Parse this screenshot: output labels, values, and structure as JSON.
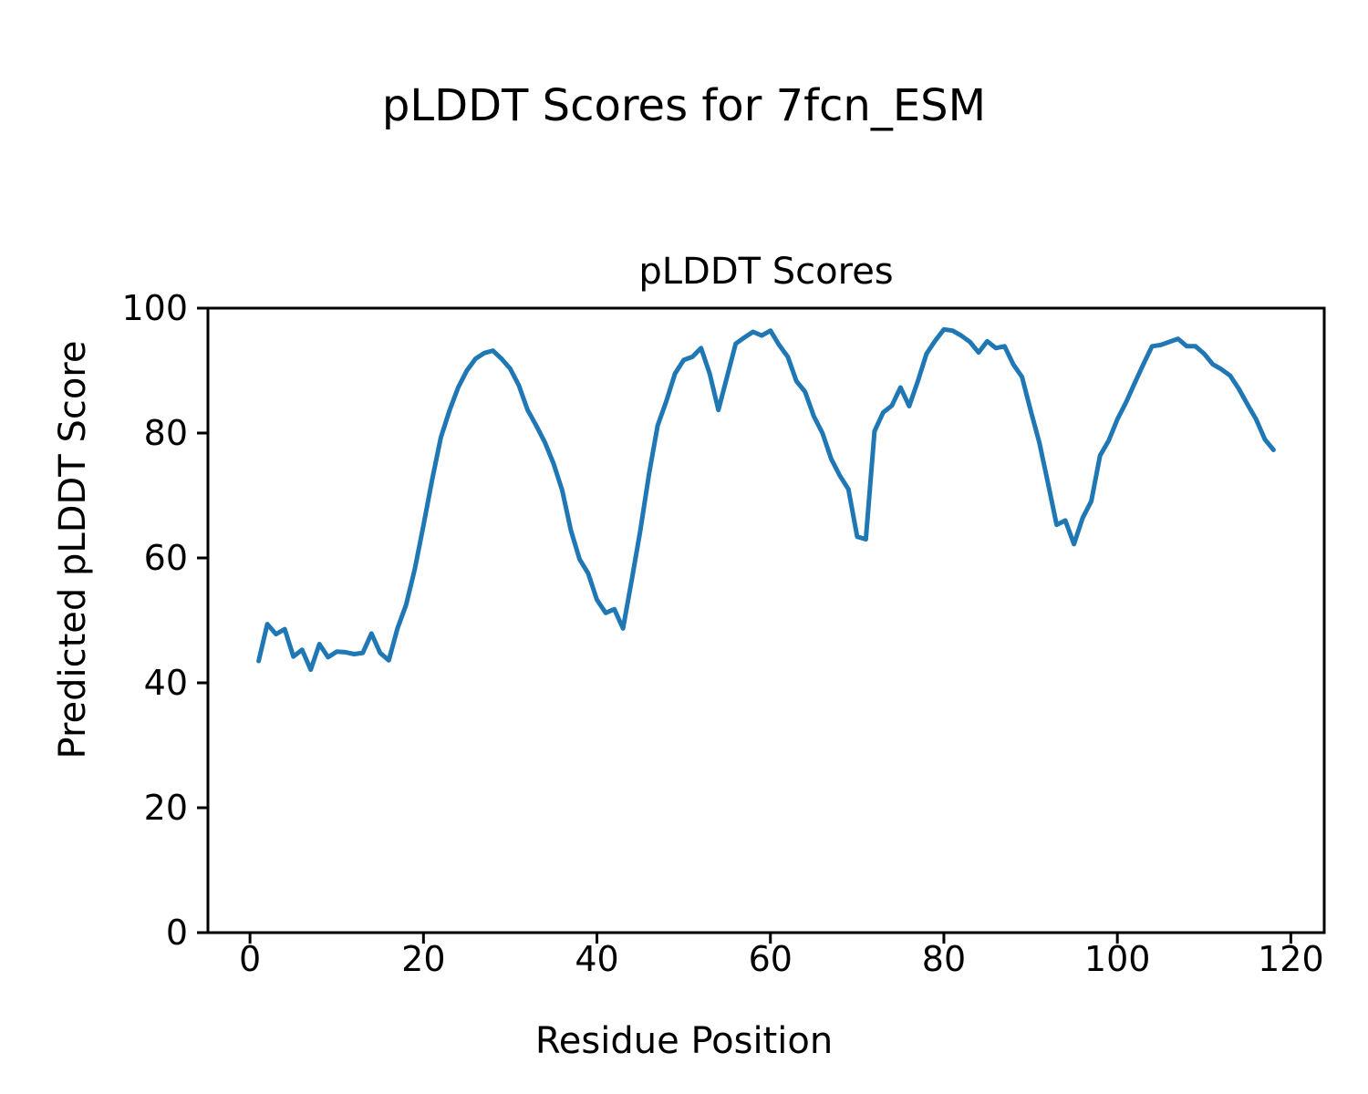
{
  "chart_data": {
    "type": "line",
    "suptitle": "pLDDT Scores for 7fcn_ESM",
    "title": "pLDDT Scores",
    "xlabel": "Residue Position",
    "ylabel": "Predicted pLDDT Score",
    "legend": null,
    "grid": false,
    "line_color": "#1f77b4",
    "line_width": 5,
    "axis_color": "#000000",
    "background_color": "#ffffff",
    "xlim": [
      -4.85,
      123.85
    ],
    "ylim": [
      0,
      100
    ],
    "xticks": [
      0,
      20,
      40,
      60,
      80,
      100,
      120
    ],
    "yticks": [
      0,
      20,
      40,
      60,
      80,
      100
    ],
    "x": [
      1,
      2,
      3,
      4,
      5,
      6,
      7,
      8,
      9,
      10,
      11,
      12,
      13,
      14,
      15,
      16,
      17,
      18,
      19,
      20,
      21,
      22,
      23,
      24,
      25,
      26,
      27,
      28,
      29,
      30,
      31,
      32,
      33,
      34,
      35,
      36,
      37,
      38,
      39,
      40,
      41,
      42,
      43,
      44,
      45,
      46,
      47,
      48,
      49,
      50,
      51,
      52,
      53,
      54,
      55,
      56,
      57,
      58,
      59,
      60,
      61,
      62,
      63,
      64,
      65,
      66,
      67,
      68,
      69,
      70,
      71,
      72,
      73,
      74,
      75,
      76,
      77,
      78,
      79,
      80,
      81,
      82,
      83,
      84,
      85,
      86,
      87,
      88,
      89,
      90,
      91,
      92,
      93,
      94,
      95,
      96,
      97,
      98,
      99,
      100,
      101,
      102,
      103,
      104,
      105,
      106,
      107,
      108,
      109,
      110,
      111,
      112,
      113,
      114,
      115,
      116,
      117,
      118
    ],
    "values": [
      43.5,
      49.4,
      47.8,
      48.6,
      44.2,
      45.3,
      42.1,
      46.2,
      44.1,
      45.0,
      44.9,
      44.6,
      44.8,
      47.9,
      44.8,
      43.6,
      48.7,
      52.5,
      58.2,
      65.2,
      72.5,
      79.3,
      83.6,
      87.3,
      90.0,
      91.9,
      92.8,
      93.2,
      91.9,
      90.3,
      87.6,
      83.7,
      81.2,
      78.5,
      75.1,
      70.8,
      64.4,
      59.8,
      57.5,
      53.3,
      51.2,
      51.8,
      48.7,
      56.4,
      64.4,
      73.4,
      81.2,
      85.1,
      89.5,
      91.7,
      92.2,
      93.6,
      89.5,
      83.7,
      89.0,
      94.3,
      95.3,
      96.2,
      95.6,
      96.4,
      94.1,
      92.2,
      88.3,
      86.6,
      82.7,
      80.0,
      75.9,
      73.2,
      71.0,
      63.4,
      63.0,
      80.3,
      83.3,
      84.4,
      87.3,
      84.3,
      88.3,
      92.7,
      94.8,
      96.6,
      96.4,
      95.6,
      94.6,
      92.9,
      94.7,
      93.6,
      93.9,
      91.0,
      89.0,
      83.6,
      78.5,
      72.0,
      65.3,
      66.0,
      62.2,
      66.4,
      69.1,
      76.4,
      78.8,
      82.2,
      84.9,
      88.0,
      91.0,
      93.9,
      94.1,
      94.6,
      95.1,
      93.9,
      93.9,
      92.7,
      91.0,
      90.2,
      89.2,
      87.1,
      84.6,
      82.2,
      79.0,
      77.3
    ]
  }
}
